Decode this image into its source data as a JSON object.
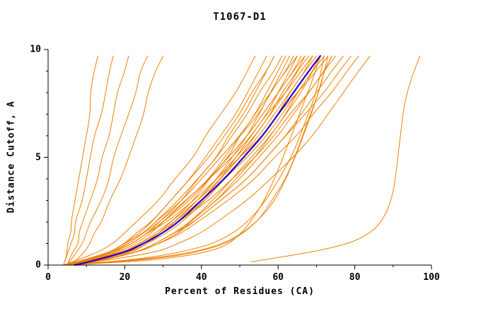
{
  "chart_data": {
    "type": "line",
    "title": "T1067-D1",
    "xlabel": "Percent of Residues (CA)",
    "ylabel": "Distance Cutoff, A",
    "xlim": [
      0,
      100
    ],
    "ylim": [
      0,
      10
    ],
    "x_ticks": [
      0,
      20,
      40,
      60,
      80,
      100
    ],
    "y_ticks": [
      0,
      5,
      10
    ],
    "grid": "off",
    "legend": "none",
    "colors": {
      "model_line": "#f08000",
      "highlight_line": "#2200cc",
      "axis": "#000000",
      "background": "#ffffff"
    },
    "y_samples": [
      0,
      0.5,
      1,
      1.5,
      2,
      3,
      4,
      5,
      6,
      7,
      8,
      9,
      9.7
    ],
    "highlight_curve_x": [
      7,
      19,
      25,
      30,
      34,
      40,
      46,
      51,
      56,
      60,
      64,
      68,
      71
    ],
    "model_curves_x": [
      [
        4,
        5,
        5,
        6,
        6,
        7,
        8,
        9,
        10,
        11,
        11,
        12,
        13
      ],
      [
        4,
        5,
        6,
        7,
        7,
        9,
        10,
        11,
        12,
        14,
        15,
        16,
        17
      ],
      [
        5,
        6,
        8,
        8,
        9,
        11,
        13,
        14,
        16,
        17,
        18,
        20,
        21
      ],
      [
        5,
        7,
        9,
        10,
        11,
        14,
        16,
        17,
        19,
        21,
        23,
        24,
        26
      ],
      [
        6,
        9,
        11,
        12,
        14,
        16,
        19,
        21,
        23,
        25,
        26,
        28,
        30
      ],
      [
        4,
        12,
        17,
        20,
        23,
        29,
        33,
        38,
        41,
        45,
        49,
        52,
        54
      ],
      [
        5,
        15,
        20,
        24,
        27,
        32,
        37,
        41,
        45,
        49,
        52,
        55,
        57
      ],
      [
        4,
        16,
        22,
        26,
        29,
        35,
        39,
        44,
        47,
        51,
        54,
        57,
        59
      ],
      [
        6,
        15,
        20,
        23,
        27,
        32,
        37,
        42,
        46,
        50,
        53,
        57,
        59
      ],
      [
        5,
        16,
        21,
        25,
        28,
        34,
        39,
        44,
        48,
        52,
        55,
        59,
        61
      ],
      [
        7,
        19,
        25,
        29,
        32,
        38,
        42,
        47,
        50,
        54,
        57,
        60,
        62
      ],
      [
        4,
        20,
        25,
        30,
        33,
        39,
        44,
        48,
        52,
        55,
        58,
        61,
        63
      ],
      [
        6,
        17,
        23,
        27,
        30,
        36,
        42,
        46,
        50,
        55,
        58,
        62,
        64
      ],
      [
        5,
        15,
        20,
        25,
        28,
        35,
        40,
        45,
        50,
        54,
        58,
        62,
        65
      ],
      [
        8,
        21,
        26,
        30,
        34,
        40,
        45,
        49,
        53,
        57,
        60,
        63,
        65
      ],
      [
        4,
        16,
        22,
        26,
        30,
        37,
        42,
        47,
        52,
        56,
        60,
        64,
        66
      ],
      [
        6,
        16,
        22,
        26,
        30,
        36,
        42,
        47,
        52,
        56,
        60,
        64,
        67
      ],
      [
        5,
        19,
        25,
        29,
        33,
        40,
        45,
        50,
        54,
        58,
        61,
        65,
        67
      ],
      [
        7,
        19,
        24,
        29,
        33,
        39,
        44,
        49,
        54,
        58,
        62,
        65,
        68
      ],
      [
        4,
        15,
        21,
        25,
        29,
        36,
        42,
        48,
        53,
        57,
        62,
        66,
        69
      ],
      [
        6,
        20,
        26,
        31,
        35,
        41,
        46,
        51,
        56,
        60,
        63,
        67,
        69
      ],
      [
        5,
        18,
        24,
        28,
        32,
        39,
        45,
        50,
        55,
        59,
        63,
        67,
        70
      ],
      [
        8,
        22,
        28,
        33,
        37,
        43,
        48,
        53,
        58,
        62,
        65,
        69,
        71
      ],
      [
        5,
        22,
        29,
        34,
        37,
        44,
        49,
        54,
        58,
        62,
        66,
        69,
        71
      ],
      [
        6,
        19,
        25,
        30,
        34,
        41,
        46,
        52,
        57,
        61,
        65,
        69,
        72
      ],
      [
        4,
        16,
        22,
        26,
        31,
        38,
        44,
        50,
        56,
        60,
        65,
        70,
        73
      ],
      [
        7,
        22,
        28,
        33,
        37,
        44,
        50,
        55,
        60,
        64,
        68,
        72,
        74
      ],
      [
        5,
        19,
        25,
        30,
        34,
        42,
        48,
        54,
        59,
        63,
        68,
        72,
        75
      ],
      [
        6,
        22,
        29,
        34,
        38,
        45,
        52,
        57,
        62,
        66,
        70,
        74,
        77
      ],
      [
        8,
        22,
        28,
        33,
        38,
        45,
        52,
        57,
        62,
        67,
        72,
        76,
        79
      ],
      [
        5,
        22,
        29,
        35,
        39,
        47,
        54,
        59,
        65,
        69,
        74,
        78,
        81
      ],
      [
        6,
        27,
        34,
        40,
        44,
        52,
        58,
        64,
        69,
        73,
        77,
        81,
        84
      ]
    ],
    "model_curves_xy": [
      [
        [
          5,
          0
        ],
        [
          15,
          0.1
        ],
        [
          25,
          0.2
        ],
        [
          33,
          0.35
        ],
        [
          40,
          0.55
        ],
        [
          45,
          0.8
        ],
        [
          48,
          1.1
        ],
        [
          51,
          1.6
        ],
        [
          54,
          2.3
        ],
        [
          57,
          3.2
        ],
        [
          60,
          4.4
        ],
        [
          63,
          5.8
        ],
        [
          66,
          7.2
        ],
        [
          69,
          8.6
        ],
        [
          71,
          9.7
        ]
      ],
      [
        [
          6,
          0
        ],
        [
          18,
          0.15
        ],
        [
          28,
          0.3
        ],
        [
          36,
          0.5
        ],
        [
          42,
          0.75
        ],
        [
          47,
          1.05
        ],
        [
          51,
          1.5
        ],
        [
          55,
          2.1
        ],
        [
          58,
          2.9
        ],
        [
          62,
          4.0
        ],
        [
          65,
          5.3
        ],
        [
          68,
          6.8
        ],
        [
          71,
          8.2
        ],
        [
          73,
          9.7
        ]
      ],
      [
        [
          4,
          0
        ],
        [
          12,
          0.1
        ],
        [
          22,
          0.25
        ],
        [
          30,
          0.45
        ],
        [
          37,
          0.7
        ],
        [
          43,
          1.0
        ],
        [
          48,
          1.45
        ],
        [
          52,
          2.0
        ],
        [
          56,
          2.8
        ],
        [
          60,
          3.9
        ],
        [
          64,
          5.2
        ],
        [
          67,
          6.6
        ],
        [
          70,
          8.0
        ],
        [
          72,
          9.7
        ]
      ],
      [
        [
          5,
          0
        ],
        [
          20,
          0.2
        ],
        [
          31,
          0.4
        ],
        [
          39,
          0.65
        ],
        [
          45,
          0.95
        ],
        [
          50,
          1.4
        ],
        [
          54,
          1.95
        ],
        [
          58,
          2.7
        ],
        [
          61,
          3.6
        ],
        [
          64,
          4.8
        ],
        [
          67,
          6.2
        ],
        [
          70,
          7.7
        ],
        [
          72,
          9.0
        ],
        [
          74,
          9.7
        ]
      ],
      [
        [
          53,
          0.15
        ],
        [
          60,
          0.35
        ],
        [
          67,
          0.55
        ],
        [
          74,
          0.8
        ],
        [
          80,
          1.1
        ],
        [
          85,
          1.6
        ],
        [
          88,
          2.3
        ],
        [
          90,
          3.3
        ],
        [
          91,
          4.6
        ],
        [
          92,
          6.2
        ],
        [
          93,
          7.6
        ],
        [
          95,
          8.8
        ],
        [
          97,
          9.7
        ]
      ]
    ]
  }
}
